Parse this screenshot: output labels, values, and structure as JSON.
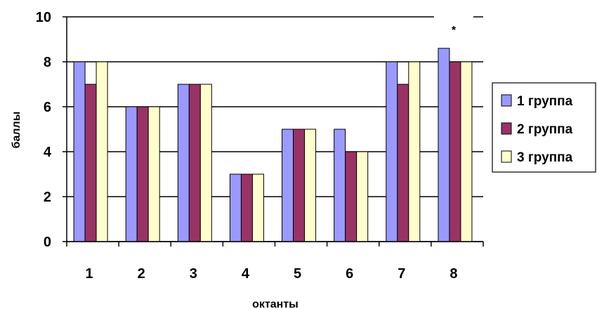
{
  "chart_data": {
    "type": "bar",
    "xlabel": "октанты",
    "ylabel": "баллы",
    "ylim": [
      0,
      10
    ],
    "yticks": [
      0,
      2,
      4,
      6,
      8,
      10
    ],
    "grid": true,
    "legend_position": "right",
    "categories": [
      "1",
      "2",
      "3",
      "4",
      "5",
      "6",
      "7",
      "8"
    ],
    "series": [
      {
        "name": "1 группа",
        "color": "#9999ff",
        "values": [
          8,
          6,
          7,
          3,
          5,
          5,
          8,
          8.6
        ]
      },
      {
        "name": "2 группа",
        "color": "#993366",
        "values": [
          7,
          6,
          7,
          3,
          5,
          4,
          7,
          8
        ]
      },
      {
        "name": "3 группа",
        "color": "#ffffcc",
        "values": [
          8,
          6,
          7,
          3,
          5,
          4,
          8,
          8
        ]
      }
    ],
    "annotations": [
      {
        "category": "8",
        "text": "*"
      }
    ]
  }
}
